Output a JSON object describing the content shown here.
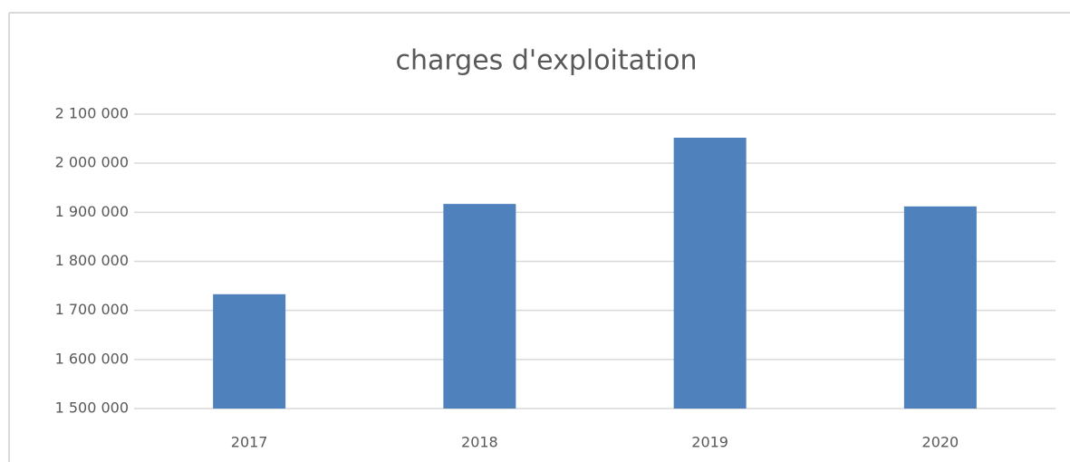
{
  "chart_data": {
    "type": "bar",
    "title": "charges d'exploitation",
    "categories": [
      "2017",
      "2018",
      "2019",
      "2020"
    ],
    "values": [
      1733000,
      1917000,
      2052000,
      1912000
    ],
    "color": "#4f81bd",
    "ylim": [
      1500000,
      2100000
    ],
    "yticks": [
      {
        "value": 1500000,
        "label": "1 500 000"
      },
      {
        "value": 1600000,
        "label": "1 600 000"
      },
      {
        "value": 1700000,
        "label": "1 700 000"
      },
      {
        "value": 1800000,
        "label": "1 800 000"
      },
      {
        "value": 1900000,
        "label": "1 900 000"
      },
      {
        "value": 2000000,
        "label": "2 000 000"
      },
      {
        "value": 2100000,
        "label": "2 100 000"
      }
    ],
    "grid": true
  }
}
